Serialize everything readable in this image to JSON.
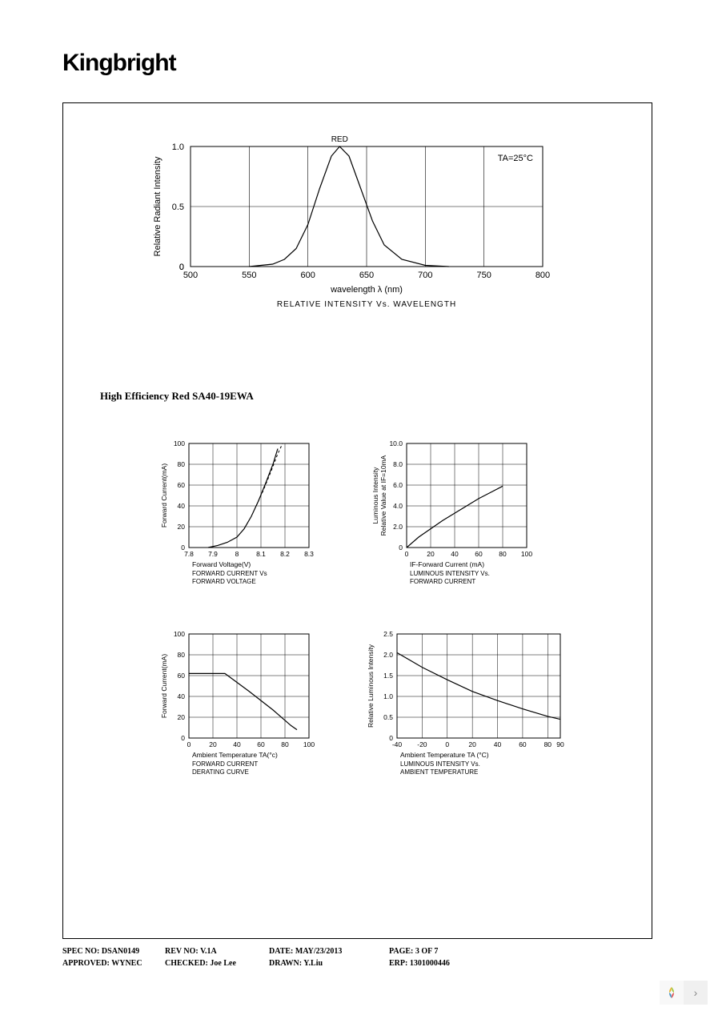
{
  "logo": "Kingbright",
  "section_heading": "High Efficiency Red       SA40-19EWA",
  "chart1": {
    "type": "line",
    "title_top": "RED",
    "annotation": "TA=25°C",
    "ylabel": "Relative Radiant Intensity",
    "xlabel": "wavelength λ (nm)",
    "caption": "RELATIVE INTENSITY Vs. WAVELENGTH",
    "xlim": [
      500,
      800
    ],
    "xtick_step": 50,
    "ylim": [
      0,
      1.0
    ],
    "yticks": [
      0,
      0.5,
      1.0
    ],
    "grid_color": "#000000",
    "background_color": "#ffffff",
    "line_color": "#000000",
    "line_width": 1.2,
    "curve": [
      [
        550,
        0.0
      ],
      [
        570,
        0.02
      ],
      [
        580,
        0.06
      ],
      [
        590,
        0.15
      ],
      [
        600,
        0.35
      ],
      [
        610,
        0.65
      ],
      [
        620,
        0.92
      ],
      [
        627,
        1.0
      ],
      [
        635,
        0.92
      ],
      [
        645,
        0.65
      ],
      [
        655,
        0.38
      ],
      [
        665,
        0.18
      ],
      [
        680,
        0.06
      ],
      [
        700,
        0.01
      ],
      [
        720,
        0.0
      ]
    ]
  },
  "chart2": {
    "type": "line",
    "ylabel": "Forward Current(mA)",
    "xlabel": "Forward Voltage(V)",
    "caption1": "FORWARD CURRENT Vs",
    "caption2": "FORWARD VOLTAGE",
    "xlim": [
      7.8,
      8.3
    ],
    "xticks": [
      7.8,
      7.9,
      8.0,
      8.1,
      8.2,
      8.3
    ],
    "ylim": [
      0,
      100
    ],
    "ytick_step": 20,
    "grid_color": "#000000",
    "background_color": "#ffffff",
    "line_color": "#000000",
    "line_width": 1.2,
    "curve": [
      [
        7.88,
        0
      ],
      [
        7.92,
        2
      ],
      [
        7.96,
        5
      ],
      [
        8.0,
        10
      ],
      [
        8.03,
        18
      ],
      [
        8.06,
        30
      ],
      [
        8.09,
        45
      ],
      [
        8.12,
        62
      ],
      [
        8.15,
        80
      ],
      [
        8.17,
        95
      ]
    ],
    "dashed_curve": [
      [
        8.08,
        40
      ],
      [
        8.11,
        55
      ],
      [
        8.14,
        72
      ],
      [
        8.17,
        90
      ],
      [
        8.19,
        100
      ]
    ]
  },
  "chart3": {
    "type": "line",
    "ylabel1": "Luminous Intensity",
    "ylabel2": "Relative Value at IF=10mA",
    "xlabel": "IF-Forward Current (mA)",
    "caption1": "LUMINOUS INTENSITY Vs.",
    "caption2": "FORWARD CURRENT",
    "xlim": [
      0,
      100
    ],
    "xtick_step": 20,
    "ylim": [
      0,
      10
    ],
    "ytick_step": 2,
    "ytick_labels": [
      "0",
      "2.0",
      "4.0",
      "6.0",
      "8.0",
      "10.0"
    ],
    "grid_color": "#000000",
    "background_color": "#ffffff",
    "line_color": "#000000",
    "line_width": 1.2,
    "curve": [
      [
        0,
        0
      ],
      [
        10,
        1.0
      ],
      [
        20,
        1.8
      ],
      [
        30,
        2.6
      ],
      [
        40,
        3.3
      ],
      [
        50,
        4.0
      ],
      [
        60,
        4.7
      ],
      [
        70,
        5.3
      ],
      [
        80,
        5.9
      ]
    ]
  },
  "chart4": {
    "type": "line",
    "ylabel": "Forward Current(mA)",
    "xlabel": "Ambient Temperature TA(°c)",
    "caption1": "FORWARD CURRENT",
    "caption2": "DERATING CURVE",
    "xlim": [
      0,
      100
    ],
    "xtick_step": 20,
    "ylim": [
      0,
      100
    ],
    "ytick_step": 20,
    "grid_color": "#000000",
    "background_color": "#ffffff",
    "line_color": "#000000",
    "line_width": 1.2,
    "curve": [
      [
        0,
        62
      ],
      [
        30,
        62
      ],
      [
        50,
        45
      ],
      [
        70,
        27
      ],
      [
        85,
        12
      ],
      [
        90,
        8
      ]
    ]
  },
  "chart5": {
    "type": "line",
    "ylabel": "Relative Luminous Intensity",
    "xlabel": "Ambient Temperature TA (°C)",
    "caption1": "LUMINOUS INTENSITY Vs.",
    "caption2": "AMBIENT TEMPERATURE",
    "xlim": [
      -40,
      90
    ],
    "xticks": [
      -40,
      -20,
      0,
      20,
      40,
      60,
      80,
      90
    ],
    "ylim": [
      0,
      2.5
    ],
    "ytick_step": 0.5,
    "ytick_labels": [
      "0",
      "0.5",
      "1.0",
      "1.5",
      "2.0",
      "2.5"
    ],
    "grid_color": "#000000",
    "background_color": "#ffffff",
    "line_color": "#000000",
    "line_width": 1.2,
    "curve": [
      [
        -40,
        2.05
      ],
      [
        -20,
        1.7
      ],
      [
        0,
        1.4
      ],
      [
        20,
        1.12
      ],
      [
        40,
        0.9
      ],
      [
        60,
        0.7
      ],
      [
        80,
        0.52
      ],
      [
        90,
        0.45
      ]
    ]
  },
  "footer": {
    "row1": {
      "spec_no_label": "SPEC NO:",
      "spec_no": "DSAN0149",
      "rev_no_label": "REV NO:",
      "rev_no": "V.1A",
      "date_label": "DATE:",
      "date": "MAY/23/2013",
      "page_label": "PAGE:",
      "page": "3 OF 7"
    },
    "row2": {
      "approved_label": "APPROVED:",
      "approved": "WYNEC",
      "checked_label": "CHECKED:",
      "checked": "Joe Lee",
      "drawn_label": "DRAWN:",
      "drawn": "Y.Liu",
      "erp_label": "ERP:",
      "erp": "1301000446"
    }
  }
}
